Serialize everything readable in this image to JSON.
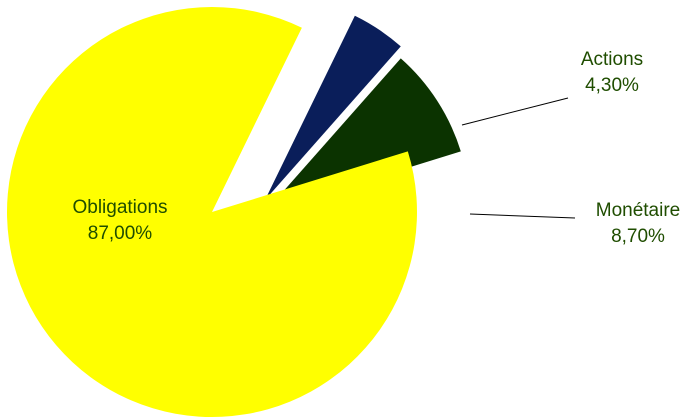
{
  "chart_data": {
    "type": "pie",
    "title": "",
    "slices": [
      {
        "name": "Actions",
        "value_label": "4,30%",
        "value": 4.3,
        "color": "#0a1e5a"
      },
      {
        "name": "Monétaire",
        "value_label": "8,70%",
        "value": 8.7,
        "color": "#0b3300"
      },
      {
        "name": "Obligations",
        "value_label": "87,00%",
        "value": 87.0,
        "color": "#ffff00"
      }
    ],
    "exploded": true,
    "legend": "none"
  }
}
